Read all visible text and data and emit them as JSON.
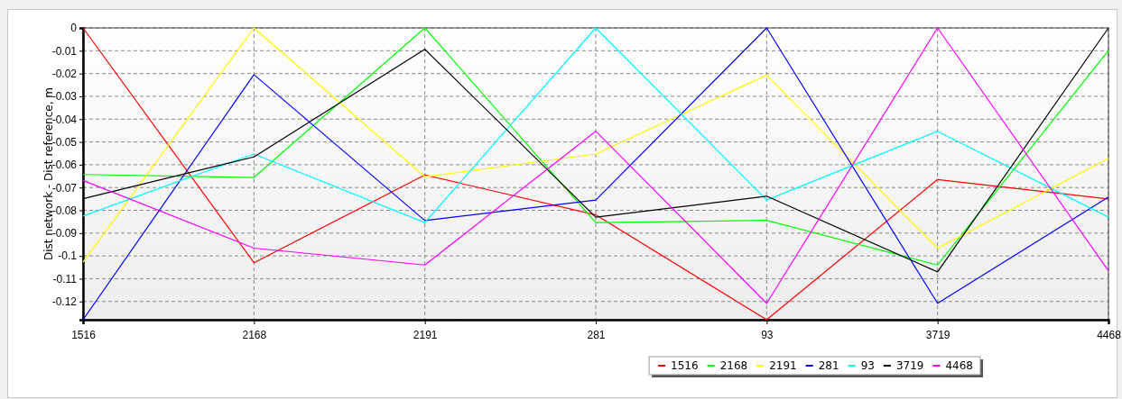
{
  "chart_data": {
    "type": "line",
    "ylabel": "Dist network - Dist reference, m",
    "categories": [
      "1516",
      "2168",
      "2191",
      "281",
      "93",
      "3719",
      "4468"
    ],
    "ylim": [
      -0.128,
      0
    ],
    "yticks": [
      0,
      -0.01,
      -0.02,
      -0.03,
      -0.04,
      -0.05,
      -0.06,
      -0.07,
      -0.08,
      -0.09,
      -0.1,
      -0.11,
      -0.12
    ],
    "grid": true,
    "legend": "bottom right",
    "marker": "none",
    "line_style": "solid",
    "series": [
      {
        "name": "1516",
        "color": "#ff0000",
        "values": [
          0,
          -0.103,
          -0.0645,
          -0.082,
          -0.128,
          -0.0665,
          -0.075
        ]
      },
      {
        "name": "2168",
        "color": "#00ff00",
        "values": [
          -0.0643,
          -0.0656,
          0,
          -0.0854,
          -0.0844,
          -0.104,
          -0.0099
        ]
      },
      {
        "name": "2191",
        "color": "#ffff00",
        "values": [
          -0.1028,
          0,
          -0.0653,
          -0.0553,
          -0.0207,
          -0.0966,
          -0.0572
        ]
      },
      {
        "name": "281",
        "color": "#0000ff",
        "values": [
          -0.128,
          -0.0205,
          -0.0845,
          -0.0755,
          0,
          -0.1208,
          -0.0742
        ]
      },
      {
        "name": "93",
        "color": "#00ffff",
        "values": [
          -0.0825,
          -0.0553,
          -0.0854,
          0,
          -0.0755,
          -0.0453,
          -0.083
        ]
      },
      {
        "name": "3719",
        "color": "#000000",
        "values": [
          -0.0749,
          -0.0566,
          -0.0094,
          -0.083,
          -0.0738,
          -0.107,
          0
        ]
      },
      {
        "name": "4468",
        "color": "#ff00ff",
        "values": [
          -0.0669,
          -0.0966,
          -0.104,
          -0.0453,
          -0.1208,
          0,
          -0.1065
        ]
      }
    ]
  }
}
